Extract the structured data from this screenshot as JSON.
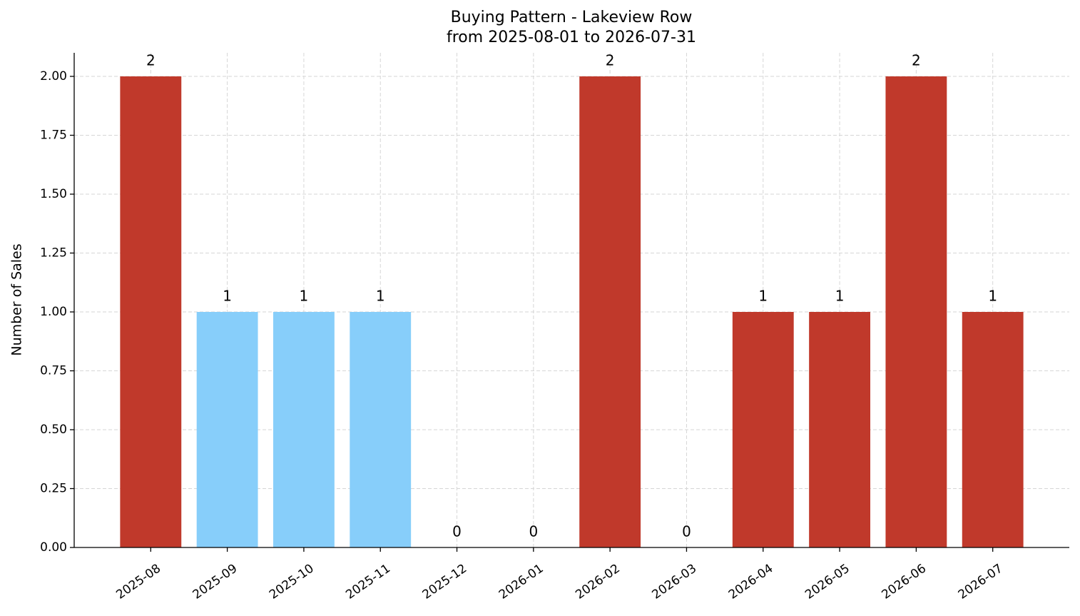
{
  "chart_data": {
    "type": "bar",
    "title": "Buying Pattern - Lakeview Row",
    "subtitle": "from 2025-08-01 to 2026-07-31",
    "y_label": "Number of Sales",
    "categories": [
      "2025-08",
      "2025-09",
      "2025-10",
      "2025-11",
      "2025-12",
      "2026-01",
      "2026-02",
      "2026-03",
      "2026-04",
      "2026-05",
      "2026-06",
      "2026-07"
    ],
    "values": [
      2,
      1,
      1,
      1,
      0,
      0,
      2,
      0,
      1,
      1,
      2,
      1
    ],
    "colors": [
      "#c0392b",
      "#87cefa",
      "#87cefa",
      "#87cefa",
      "#c0392b",
      "#c0392b",
      "#c0392b",
      "#c0392b",
      "#c0392b",
      "#c0392b",
      "#c0392b",
      "#c0392b"
    ],
    "ylim": [
      0,
      2.1
    ],
    "yticks": [
      {
        "value": 0,
        "label": "0.00"
      },
      {
        "value": 0.25,
        "label": "0.25"
      },
      {
        "value": 0.5,
        "label": "0.50"
      },
      {
        "value": 0.75,
        "label": "0.75"
      },
      {
        "value": 1,
        "label": "1.00"
      },
      {
        "value": 1.25,
        "label": "1.25"
      },
      {
        "value": 1.5,
        "label": "1.50"
      },
      {
        "value": 1.75,
        "label": "1.75"
      },
      {
        "value": 2,
        "label": "2.00"
      }
    ],
    "grid": true
  }
}
